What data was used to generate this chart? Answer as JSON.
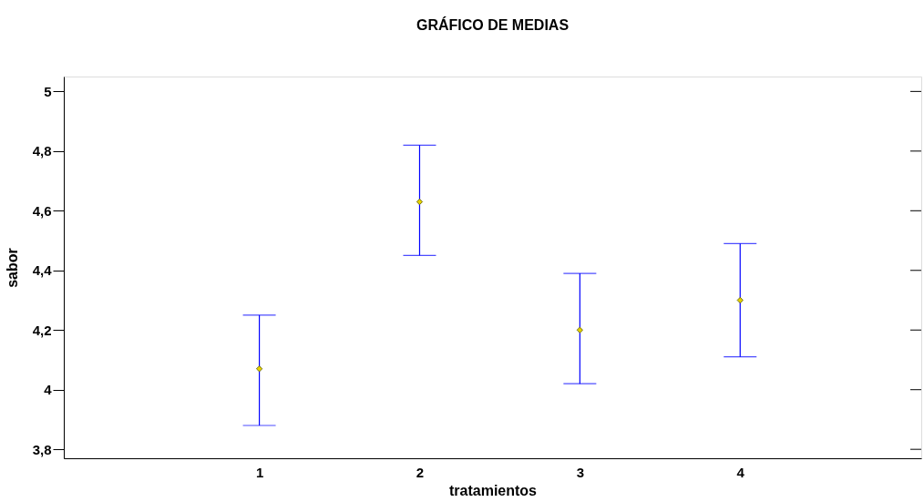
{
  "chart_data": {
    "type": "scatter",
    "title": "GRÁFICO DE MEDIAS",
    "xlabel": "tratamientos",
    "ylabel": "sabor",
    "x": [
      1,
      2,
      3,
      4
    ],
    "series": [
      {
        "color": "#e6d200",
        "values": [
          4.07,
          4.63,
          4.2,
          4.3
        ],
        "errors": [
          [
            3.88,
            4.25
          ],
          [
            4.45,
            4.82
          ],
          [
            4.02,
            4.39
          ],
          [
            4.11,
            4.49
          ]
        ]
      }
    ],
    "xlim": [
      -0.22,
      5.13
    ],
    "xticks": [
      1,
      2,
      3,
      4
    ],
    "ylim": [
      3.77,
      5.05
    ],
    "yticks": [
      {
        "value": 3.8,
        "label": "3,8"
      },
      4,
      {
        "value": 4.2,
        "label": "4,2"
      },
      {
        "value": 4.4,
        "label": "4,4"
      },
      {
        "value": 4.6,
        "label": "4,6"
      },
      {
        "value": 4.8,
        "label": "4,8"
      },
      5
    ],
    "marker": "diamond",
    "grid": false
  }
}
